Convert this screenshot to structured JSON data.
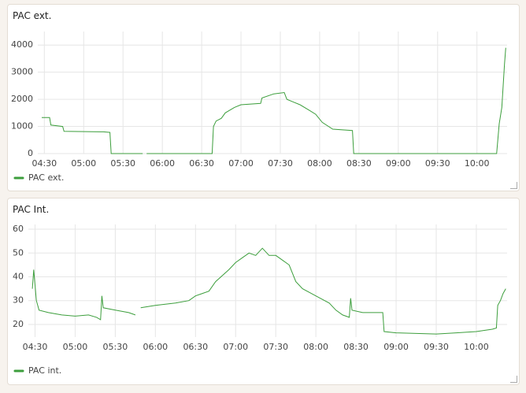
{
  "chart_data": [
    {
      "type": "line",
      "title": "PAC ext.",
      "x": [
        "04:28",
        "04:34",
        "04:35",
        "04:44",
        "04:45",
        "05:15",
        "05:20",
        "05:21",
        "05:45",
        "05:47",
        "05:48",
        "06:38",
        "06:39",
        "06:41",
        "06:45",
        "06:48",
        "06:55",
        "07:00",
        "07:15",
        "07:16",
        "07:25",
        "07:33",
        "07:35",
        "07:40",
        "07:45",
        "07:52",
        "07:57",
        "08:02",
        "08:10",
        "08:25",
        "08:26",
        "10:15",
        "10:17",
        "10:19",
        "10:21",
        "10:22"
      ],
      "series": [
        {
          "name": "PAC ext.",
          "color": "#3c9e3c",
          "values": [
            1330,
            1330,
            1050,
            1000,
            820,
            800,
            780,
            0,
            0,
            null,
            0,
            0,
            1000,
            1200,
            1300,
            1500,
            1700,
            1800,
            1850,
            2050,
            2200,
            2250,
            2000,
            1900,
            1800,
            1600,
            1450,
            1150,
            900,
            850,
            0,
            0,
            1100,
            1700,
            3300,
            3900
          ]
        }
      ],
      "xlim": [
        "04:25",
        "10:23"
      ],
      "xticks": [
        "04:30",
        "05:00",
        "05:30",
        "06:00",
        "06:30",
        "07:00",
        "07:30",
        "08:00",
        "08:30",
        "09:00",
        "09:30",
        "10:00"
      ],
      "ylim": [
        0,
        4500
      ],
      "yticks": [
        0,
        1000,
        2000,
        3000,
        4000
      ],
      "grid": true
    },
    {
      "type": "line",
      "title": "PAC Int.",
      "x": [
        "04:28",
        "04:29",
        "04:31",
        "04:33",
        "04:40",
        "04:50",
        "05:00",
        "05:10",
        "05:16",
        "05:19",
        "05:20",
        "05:21",
        "05:30",
        "05:40",
        "05:45",
        "05:47",
        "05:49",
        "06:00",
        "06:15",
        "06:25",
        "06:30",
        "06:40",
        "06:45",
        "06:55",
        "07:00",
        "07:05",
        "07:10",
        "07:15",
        "07:20",
        "07:25",
        "07:30",
        "07:35",
        "07:40",
        "07:45",
        "07:50",
        "08:00",
        "08:10",
        "08:15",
        "08:20",
        "08:25",
        "08:26",
        "08:27",
        "08:35",
        "08:50",
        "08:51",
        "09:00",
        "09:30",
        "09:45",
        "10:00",
        "10:12",
        "10:15",
        "10:16",
        "10:18",
        "10:20",
        "10:22"
      ],
      "series": [
        {
          "name": "PAC int.",
          "color": "#3c9e3c",
          "values": [
            35,
            43,
            30,
            26,
            25,
            24,
            23.5,
            24,
            23,
            22,
            32,
            27,
            26,
            25,
            24,
            null,
            27,
            28,
            29,
            30,
            32,
            34,
            38,
            43,
            46,
            48,
            50,
            49,
            52,
            49,
            49,
            47,
            45,
            38,
            35,
            32,
            29,
            26,
            24,
            23,
            31,
            26,
            25,
            25,
            17,
            16.5,
            16,
            16.5,
            17,
            18,
            18.5,
            28,
            30,
            33,
            35
          ]
        }
      ],
      "xlim": [
        "04:25",
        "10:23"
      ],
      "xticks": [
        "04:30",
        "05:00",
        "05:30",
        "06:00",
        "06:30",
        "07:00",
        "07:30",
        "08:00",
        "08:30",
        "09:00",
        "09:30",
        "10:00"
      ],
      "ylim": [
        14.7,
        62
      ],
      "yticks": [
        20,
        30,
        40,
        50,
        60
      ],
      "grid": true
    }
  ]
}
